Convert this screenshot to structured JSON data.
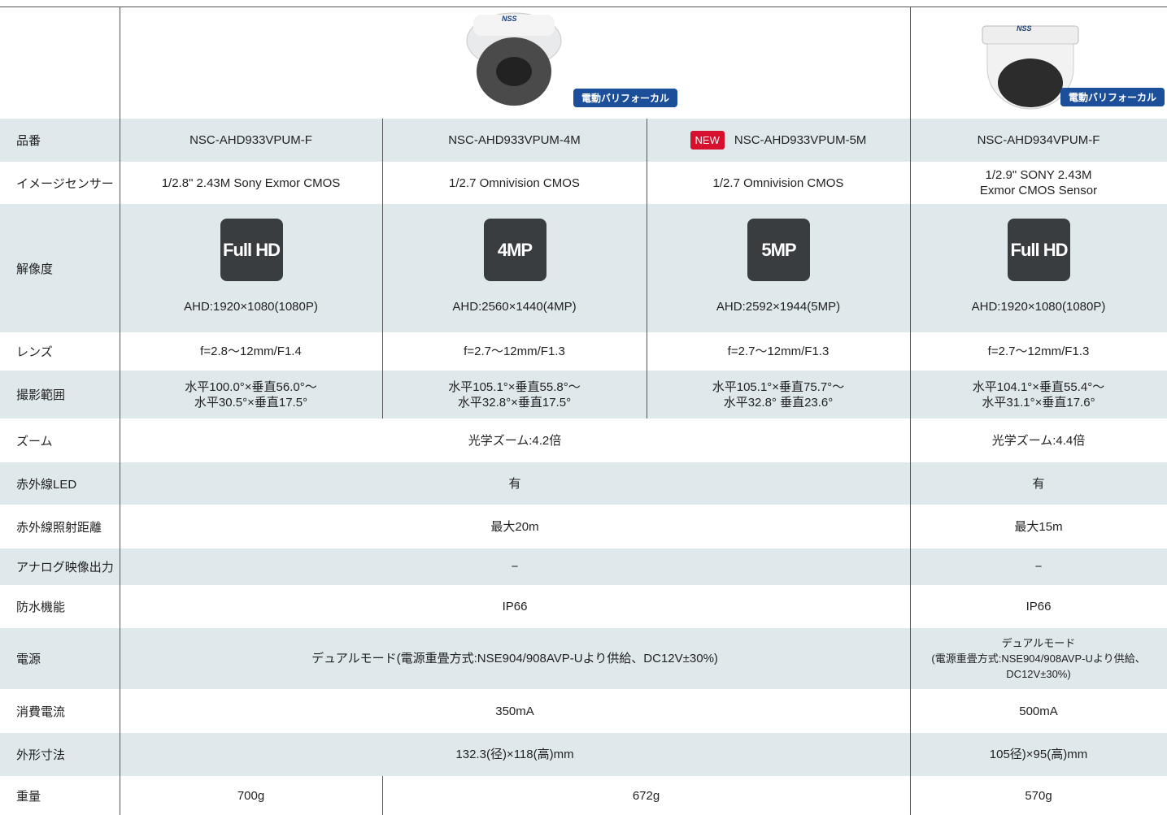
{
  "header": {
    "badges": [
      "電動バリフォーカル",
      "電動バリフォーカル"
    ],
    "logo": [
      "NSS",
      "NSS"
    ]
  },
  "new_badge": "NEW",
  "rows": [
    {
      "label": "品番",
      "cells": [
        {
          "text": "NSC-AHD933VPUM-F"
        },
        {
          "text": "NSC-AHD933VPUM-4M"
        },
        {
          "text": "NSC-AHD933VPUM-5M"
        },
        {
          "text": "NSC-AHD934VPUM-F"
        }
      ]
    },
    {
      "label": "イメージセンサー",
      "cells": [
        {
          "text": "1/2.8\" 2.43M Sony Exmor CMOS"
        },
        {
          "text": "1/2.7 Omnivision CMOS"
        },
        {
          "text": "1/2.7 Omnivision CMOS"
        },
        {
          "text": "1/2.9\" SONY 2.43M\nExmor CMOS Sensor"
        }
      ]
    },
    {
      "label": "解像度",
      "cells": [
        {
          "icon": "Full HD",
          "text": "AHD:1920×1080(1080P)"
        },
        {
          "icon": "4MP",
          "text": "AHD:2560×1440(4MP)"
        },
        {
          "icon": "5MP",
          "text": "AHD:2592×1944(5MP)"
        },
        {
          "icon": "Full HD",
          "text": "AHD:1920×1080(1080P)"
        }
      ]
    },
    {
      "label": "レンズ",
      "cells": [
        {
          "text": "f=2.8〜12mm/F1.4"
        },
        {
          "text": "f=2.7〜12mm/F1.3"
        },
        {
          "text": "f=2.7〜12mm/F1.3"
        },
        {
          "text": "f=2.7〜12mm/F1.3"
        }
      ]
    },
    {
      "label": "撮影範囲",
      "cells": [
        {
          "text": "水平100.0°×垂直56.0°〜\n水平30.5°×垂直17.5°"
        },
        {
          "text": "水平105.1°×垂直55.8°〜\n水平32.8°×垂直17.5°"
        },
        {
          "text": "水平105.1°×垂直75.7°〜\n水平32.8° 垂直23.6°"
        },
        {
          "text": "水平104.1°×垂直55.4°〜\n水平31.1°×垂直17.6°"
        }
      ]
    },
    {
      "label": "ズーム",
      "cells": [
        {
          "text": "光学ズーム:4.2倍"
        },
        {
          "text": "光学ズーム:4.4倍"
        }
      ]
    },
    {
      "label": "赤外線LED",
      "cells": [
        {
          "text": "有"
        },
        {
          "text": "有"
        }
      ]
    },
    {
      "label": "赤外線照射距離",
      "cells": [
        {
          "text": "最大20m"
        },
        {
          "text": "最大15m"
        }
      ]
    },
    {
      "label": "アナログ映像出力",
      "cells": [
        {
          "text": "−"
        },
        {
          "text": "−"
        }
      ]
    },
    {
      "label": "防水機能",
      "cells": [
        {
          "text": "IP66"
        },
        {
          "text": "IP66"
        }
      ]
    },
    {
      "label": "電源",
      "cells": [
        {
          "text": "デュアルモード(電源重畳方式:NSE904/908AVP-Uより供給、DC12V±30%)"
        },
        {
          "text": "デュアルモード\n(電源重畳方式:NSE904/908AVP-Uより供給、\nDC12V±30%)"
        }
      ]
    },
    {
      "label": "消費電流",
      "cells": [
        {
          "text": "350mA"
        },
        {
          "text": "500mA"
        }
      ]
    },
    {
      "label": "外形寸法",
      "cells": [
        {
          "text": "132.3(径)×118(高)mm"
        },
        {
          "text": "105径)×95(高)mm"
        }
      ]
    },
    {
      "label": "重量",
      "cells": [
        {
          "text": "700g"
        },
        {
          "text": "672g"
        },
        {
          "text": "570g"
        }
      ]
    }
  ]
}
